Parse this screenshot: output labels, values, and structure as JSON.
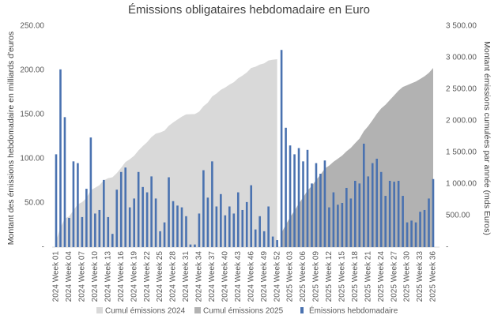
{
  "chart_data": {
    "type": "bar",
    "title": "Émissions obligataires hebdomadaire en Euro",
    "y_label": "Montant des émissions hebdomadaire en milliards d'euros",
    "y2_label": "Montant émissions cumulées par année (mds Euros)",
    "categories": [
      "2024 Week 01",
      null,
      null,
      "2024 Week 04",
      null,
      null,
      "2024 Week 07",
      null,
      null,
      "2024 Week 10",
      null,
      null,
      "2024 Week 13",
      null,
      null,
      "2024 Week 16",
      null,
      null,
      "2024 Week 19",
      null,
      null,
      "2024 Week 22",
      null,
      null,
      "2024 Week 25",
      null,
      null,
      "2024 Week 28",
      null,
      null,
      "2024 Week 31",
      null,
      null,
      "2024 Week 34",
      null,
      null,
      "2024 Week 37",
      null,
      null,
      "2024 Week 40",
      null,
      null,
      "2024 Week 43",
      null,
      null,
      "2024 Week 46",
      null,
      null,
      "2024 Week 49",
      null,
      null,
      "2024 Week 52",
      null,
      null,
      "2025 Week 03",
      null,
      null,
      "2025 Week 06",
      null,
      null,
      "2025 Week 09",
      null,
      null,
      "2025 Week 12",
      null,
      null,
      "2025 Week 15",
      null,
      null,
      "2025 Week 18",
      null,
      null,
      "2025 Week 21",
      null,
      null,
      "2025 Week 24",
      null,
      null,
      "2025 Week 27",
      null,
      null,
      "2025 Week 30",
      null,
      null,
      "2025 Week 33",
      null,
      null,
      "2025 Week 36"
    ],
    "ylim": [
      0,
      250
    ],
    "yticks": [
      {
        "value": 0,
        "label": "-"
      },
      {
        "value": 50,
        "label": "50.00"
      },
      {
        "value": 100,
        "label": "100.00"
      },
      {
        "value": 150,
        "label": "150.00"
      },
      {
        "value": 200,
        "label": "200.00"
      },
      {
        "value": 250,
        "label": "250.00"
      }
    ],
    "y2lim": [
      0,
      3500
    ],
    "y2ticks": [
      {
        "value": 0,
        "label": "-"
      },
      {
        "value": 500,
        "label": "500.00"
      },
      {
        "value": 1000,
        "label": "1 000.00"
      },
      {
        "value": 1500,
        "label": "1 500.00"
      },
      {
        "value": 2000,
        "label": "2 000.00"
      },
      {
        "value": 2500,
        "label": "2 500.00"
      },
      {
        "value": 3000,
        "label": "3 000.00"
      },
      {
        "value": 3500,
        "label": "3 500.00"
      }
    ],
    "series": [
      {
        "name": "Cumul émissions 2024",
        "type": "area",
        "axis": "y2",
        "color": "#d9d9d9",
        "values": [
          105,
          306,
          453,
          486,
          583,
          678,
          712,
          778,
          902,
          940,
          982,
          1058,
          1092,
          1107,
          1172,
          1257,
          1347,
          1392,
          1447,
          1532,
          1600,
          1662,
          1742,
          1797,
          1815,
          1843,
          1922,
          1974,
          2021,
          2066,
          2101,
          2104,
          2107,
          2145,
          2232,
          2288,
          2385,
          2431,
          2491,
          2527,
          2573,
          2611,
          2673,
          2715,
          2766,
          2836,
          2856,
          2891,
          2909,
          2955,
          2967,
          2975,
          null,
          null,
          null,
          null,
          null,
          null,
          null,
          null,
          null,
          null,
          null,
          null,
          null,
          null,
          null,
          null,
          null,
          null,
          null,
          null,
          null,
          null,
          null,
          null,
          null,
          null,
          null,
          null,
          null,
          null,
          null,
          null,
          null,
          null,
          null,
          null
        ]
      },
      {
        "name": "Cumul émissions 2025",
        "type": "area",
        "axis": "y2",
        "color": "#b2b2b2",
        "values": [
          null,
          null,
          null,
          null,
          null,
          null,
          null,
          null,
          null,
          null,
          null,
          null,
          null,
          null,
          null,
          null,
          null,
          null,
          null,
          null,
          null,
          null,
          null,
          null,
          null,
          null,
          null,
          null,
          null,
          null,
          null,
          null,
          null,
          null,
          null,
          null,
          null,
          null,
          null,
          null,
          null,
          null,
          null,
          null,
          null,
          null,
          null,
          null,
          null,
          null,
          null,
          null,
          223,
          358,
          473,
          578,
          690,
          787,
          897,
          969,
          1064,
          1147,
          1245,
          1290,
          1352,
          1400,
          1450,
          1517,
          1572,
          1647,
          1719,
          1836,
          1916,
          2011,
          2111,
          2196,
          2254,
          2329,
          2403,
          2478,
          2536,
          2564,
          2594,
          2622,
          2662,
          2704,
          2759,
          2836
        ]
      },
      {
        "name": "Émissions hebdomadaire",
        "type": "bar",
        "color": "#4a72b0",
        "values": [
          105,
          201,
          147,
          33,
          97,
          95,
          34,
          66,
          124,
          38,
          42,
          76,
          34,
          15,
          65,
          85,
          90,
          45,
          55,
          85,
          68,
          62,
          80,
          55,
          18,
          28,
          79,
          52,
          47,
          45,
          35,
          3,
          3,
          38,
          87,
          56,
          97,
          46,
          60,
          36,
          46,
          38,
          62,
          42,
          51,
          70,
          20,
          35,
          18,
          46,
          12,
          8,
          223,
          135,
          115,
          105,
          112,
          97,
          110,
          72,
          95,
          83,
          98,
          45,
          62,
          48,
          50,
          67,
          55,
          75,
          72,
          117,
          80,
          95,
          100,
          85,
          58,
          75,
          74,
          75,
          58,
          28,
          30,
          28,
          40,
          42,
          55,
          77
        ]
      }
    ]
  }
}
